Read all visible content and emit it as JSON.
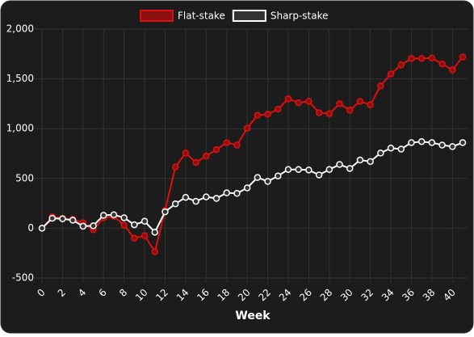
{
  "chart_data": {
    "type": "line",
    "x_label": "Week",
    "x": [
      0,
      1,
      2,
      3,
      4,
      5,
      6,
      7,
      8,
      9,
      10,
      11,
      12,
      13,
      14,
      15,
      16,
      17,
      18,
      19,
      20,
      21,
      22,
      23,
      24,
      25,
      26,
      27,
      28,
      29,
      30,
      31,
      32,
      33,
      34,
      35,
      36,
      37,
      38,
      39,
      40,
      41
    ],
    "series": [
      {
        "name": "Flat-stake",
        "color": "#e01010",
        "values": [
          0,
          115,
          100,
          90,
          55,
          -15,
          105,
          120,
          30,
          -100,
          -75,
          -235,
          180,
          615,
          755,
          660,
          725,
          790,
          860,
          835,
          1005,
          1135,
          1145,
          1195,
          1300,
          1260,
          1275,
          1160,
          1150,
          1250,
          1185,
          1275,
          1240,
          1430,
          1550,
          1640,
          1705,
          1705,
          1710,
          1650,
          1590,
          1720
        ]
      },
      {
        "name": "Sharp-stake",
        "color": "#ffffff",
        "values": [
          0,
          100,
          95,
          80,
          20,
          25,
          130,
          135,
          105,
          35,
          70,
          -40,
          165,
          245,
          310,
          270,
          315,
          300,
          355,
          350,
          405,
          510,
          470,
          525,
          590,
          590,
          585,
          535,
          590,
          640,
          600,
          685,
          670,
          755,
          805,
          795,
          860,
          870,
          860,
          835,
          820,
          860
        ]
      }
    ],
    "xlim": [
      0,
      41
    ],
    "xticks": [
      0,
      2,
      4,
      6,
      8,
      10,
      12,
      14,
      16,
      18,
      20,
      22,
      24,
      26,
      28,
      30,
      32,
      34,
      36,
      38,
      40
    ],
    "ylim": [
      -500,
      2000
    ],
    "yticks": [
      -500,
      0,
      500,
      {
        "value": 1000,
        "label": "1,000"
      },
      {
        "value": 1500,
        "label": "1,500"
      },
      {
        "value": 2000,
        "label": "2,000"
      }
    ],
    "grid": true,
    "legend": "top"
  }
}
